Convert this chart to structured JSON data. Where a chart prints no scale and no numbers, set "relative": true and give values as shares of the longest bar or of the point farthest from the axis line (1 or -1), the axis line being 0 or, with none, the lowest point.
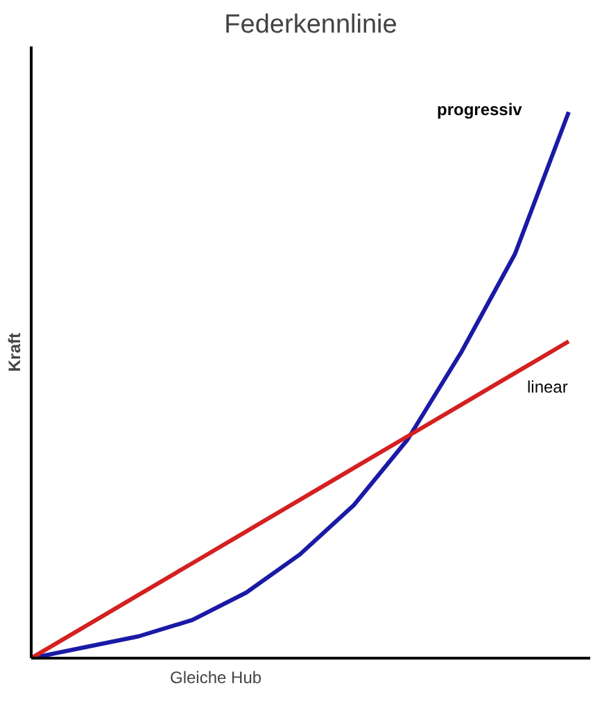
{
  "chart_data": {
    "type": "line",
    "title": "Federkennlinie",
    "ylabel": "Kraft",
    "relative": true,
    "categories": [
      null,
      null,
      null,
      null,
      null,
      null,
      null,
      null,
      null,
      null,
      null
    ],
    "series": [
      {
        "name": "progressiv",
        "color": "#1a1aa6",
        "values": [
          0,
          0.02,
          0.04,
          0.07,
          0.12,
          0.19,
          0.28,
          0.4,
          0.56,
          0.74,
          1
        ]
      },
      {
        "name": "linear",
        "color": "#d42020",
        "values": [
          0,
          0.058,
          0.116,
          0.174,
          0.232,
          0.29,
          0.348,
          0.406,
          0.464,
          0.522,
          0.58
        ]
      }
    ],
    "annotations": [
      "Gleiche Hub"
    ],
    "marker": "none",
    "line_style": "solid"
  }
}
